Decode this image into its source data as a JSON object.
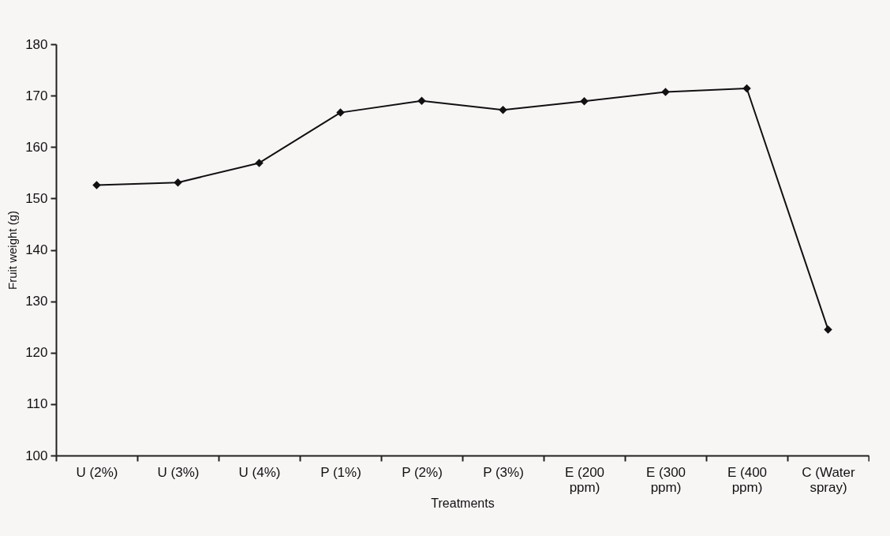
{
  "chart_data": {
    "type": "line",
    "xlabel": "Treatments",
    "ylabel": "Fruit  weight (g)",
    "categories": [
      "U (2%)",
      "U (3%)",
      "U (4%)",
      "P (1%)",
      "P (2%)",
      "P (3%)",
      "E (200 ppm)",
      "E (300 ppm)",
      "E (400 ppm)",
      "C (Water spray)"
    ],
    "series": [
      {
        "color": "#111111",
        "values": [
          152.6,
          153.1,
          156.9,
          166.7,
          169.0,
          167.2,
          168.9,
          170.7,
          171.4,
          124.5
        ]
      }
    ],
    "ylim": [
      100,
      180
    ],
    "yticks": [
      100,
      110,
      120,
      130,
      140,
      150,
      160,
      170,
      180
    ],
    "grid": false,
    "legend": false,
    "marker": "diamond",
    "line_style": "solid"
  }
}
